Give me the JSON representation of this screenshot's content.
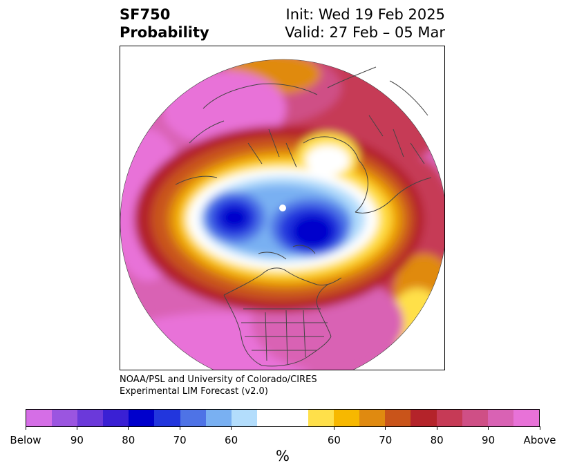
{
  "header": {
    "title_line1": "SF750",
    "title_line2": "Probability",
    "init_text": "Init: Wed 19 Feb 2025",
    "valid_text": "Valid: 27 Feb – 05 Mar"
  },
  "credit": {
    "line1": "NOAA/PSL and University of Colorado/CIRES",
    "line2": "Experimental LIM Forecast (v2.0)"
  },
  "colorbar": {
    "unit": "%",
    "colors": [
      "#d56ee6",
      "#9b55e0",
      "#6b39da",
      "#3a20d4",
      "#0000cc",
      "#2236dd",
      "#4e73e6",
      "#79b0f2",
      "#b3ddfc",
      "#ffffff",
      "#ffe04a",
      "#f7b800",
      "#e08a10",
      "#c9541a",
      "#b4232a",
      "#c63a56",
      "#cf4f86",
      "#d962b4",
      "#e872d8"
    ],
    "tick_labels": [
      "Below",
      "90",
      "80",
      "70",
      "60",
      "60",
      "70",
      "80",
      "90",
      "Above"
    ]
  },
  "map": {
    "projection": "polar-stereographic",
    "region": "Northern Hemisphere",
    "features": [
      "coastlines",
      "country-borders",
      "us-state-borders"
    ]
  }
}
